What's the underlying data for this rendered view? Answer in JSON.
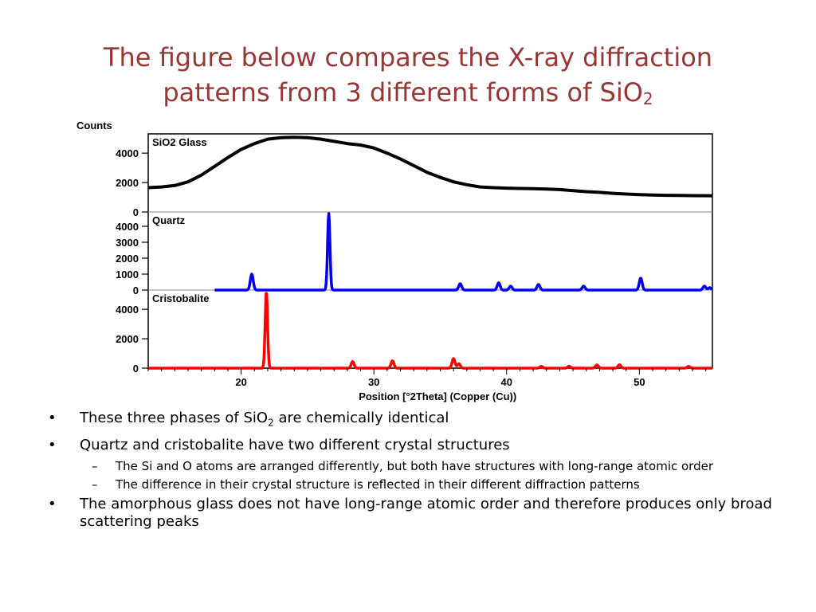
{
  "slide": {
    "title_line1": "The figure below compares the X-ray diffraction",
    "title_line2_prefix": "patterns from 3 different forms of SiO",
    "title_line2_sub": "2",
    "bullets": [
      {
        "prefix": "These three phases of SiO",
        "sub": "2",
        "suffix": " are chemically identical"
      },
      {
        "text": "Quartz and cristobalite have two different crystal structures"
      },
      {
        "text": "The Si and O atoms are arranged differently, but both have structures with long-range atomic order"
      },
      {
        "text": "The difference in their crystal structure is reflected in their different diffraction patterns"
      },
      {
        "text": "The amorphous glass does not have long-range atomic order and therefore produces only broad scattering peaks"
      }
    ],
    "bullet_mark": "•",
    "dash_mark": "–"
  },
  "chart_data": {
    "type": "line",
    "ylabel": "Counts",
    "xlabel": "Position [°2Theta] (Copper (Cu))",
    "xlim": [
      13,
      55.5
    ],
    "xticks": [
      20,
      30,
      40,
      50
    ],
    "grid": false,
    "panels": [
      {
        "name": "SiO2 Glass",
        "color": "#000000",
        "ylim": [
          0,
          5200
        ],
        "yticks": [
          0,
          2000,
          4000
        ],
        "x": [
          13,
          14,
          15,
          16,
          17,
          18,
          19,
          20,
          21,
          22,
          23,
          24,
          25,
          26,
          27,
          28,
          29,
          30,
          31,
          32,
          33,
          34,
          35,
          36,
          37,
          38,
          39,
          40,
          41,
          42,
          43,
          44,
          45,
          46,
          47,
          48,
          49,
          50,
          51,
          52,
          53,
          54,
          55.5
        ],
        "y": [
          1650,
          1700,
          1800,
          2050,
          2500,
          3100,
          3700,
          4250,
          4650,
          4950,
          5050,
          5080,
          5050,
          4950,
          4800,
          4650,
          4550,
          4350,
          4000,
          3600,
          3150,
          2700,
          2350,
          2050,
          1850,
          1700,
          1650,
          1620,
          1600,
          1580,
          1560,
          1520,
          1450,
          1380,
          1330,
          1270,
          1220,
          1180,
          1150,
          1130,
          1120,
          1110,
          1100
        ]
      },
      {
        "name": "Quartz",
        "color": "#0000ee",
        "ylim": [
          0,
          4800
        ],
        "yticks": [
          0,
          1000,
          2000,
          3000,
          4000
        ],
        "x_start": 18,
        "peaks": [
          {
            "x": 20.8,
            "y": 1000
          },
          {
            "x": 26.6,
            "y": 4800
          },
          {
            "x": 36.5,
            "y": 400
          },
          {
            "x": 39.4,
            "y": 450
          },
          {
            "x": 40.3,
            "y": 250
          },
          {
            "x": 42.4,
            "y": 350
          },
          {
            "x": 45.8,
            "y": 250
          },
          {
            "x": 50.1,
            "y": 750
          },
          {
            "x": 54.9,
            "y": 250
          },
          {
            "x": 55.3,
            "y": 150
          }
        ]
      },
      {
        "name": "Cristobalite",
        "color": "#ff0000",
        "ylim": [
          0,
          5200
        ],
        "yticks": [
          0,
          2000,
          4000
        ],
        "x_start": 13,
        "peaks": [
          {
            "x": 21.9,
            "y": 5200
          },
          {
            "x": 28.4,
            "y": 450
          },
          {
            "x": 31.4,
            "y": 500
          },
          {
            "x": 36.0,
            "y": 650
          },
          {
            "x": 36.4,
            "y": 300
          },
          {
            "x": 42.6,
            "y": 120
          },
          {
            "x": 44.7,
            "y": 130
          },
          {
            "x": 46.8,
            "y": 220
          },
          {
            "x": 48.5,
            "y": 230
          },
          {
            "x": 53.7,
            "y": 120
          }
        ]
      }
    ]
  }
}
